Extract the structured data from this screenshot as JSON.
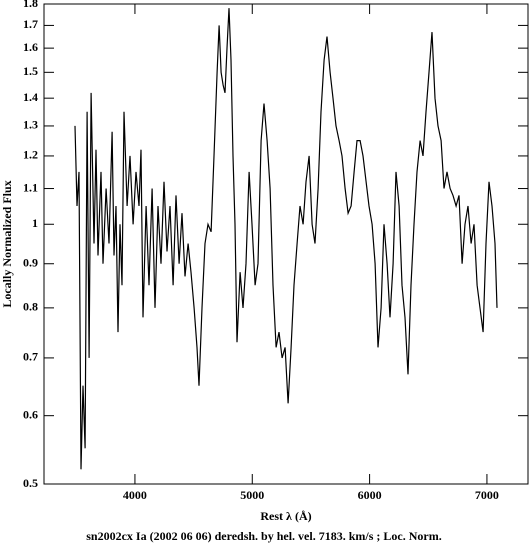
{
  "chart_data": {
    "type": "line",
    "caption": "sn2002cx Ia (2002 06 06) deredsh. by hel. vel.  7183. km/s ;  Loc. Norm.",
    "xlabel": "Rest λ (Å)",
    "ylabel": "Locally Normalized Flux",
    "color": "#000000",
    "yscale": "log",
    "xlim": [
      3225,
      7350
    ],
    "ylim": [
      0.5,
      1.8
    ],
    "xticks": [
      4000,
      5000,
      6000,
      7000
    ],
    "yticks": [
      0.5,
      0.6,
      0.7,
      0.8,
      0.9,
      1,
      1.1,
      1.2,
      1.3,
      1.4,
      1.5,
      1.6,
      1.7,
      1.8
    ],
    "x": [
      3489,
      3506,
      3523,
      3540,
      3557,
      3575,
      3592,
      3609,
      3626,
      3651,
      3668,
      3685,
      3711,
      3728,
      3754,
      3779,
      3805,
      3822,
      3839,
      3856,
      3873,
      3890,
      3907,
      3933,
      3958,
      3984,
      4009,
      4035,
      4052,
      4069,
      4095,
      4120,
      4146,
      4171,
      4197,
      4222,
      4248,
      4273,
      4299,
      4325,
      4350,
      4376,
      4401,
      4427,
      4453,
      4478,
      4504,
      4529,
      4546,
      4572,
      4597,
      4623,
      4649,
      4674,
      4700,
      4717,
      4734,
      4751,
      4768,
      4785,
      4802,
      4819,
      4836,
      4853,
      4870,
      4896,
      4921,
      4947,
      4973,
      4998,
      5024,
      5049,
      5075,
      5100,
      5126,
      5152,
      5177,
      5203,
      5228,
      5254,
      5280,
      5305,
      5331,
      5356,
      5382,
      5407,
      5433,
      5458,
      5484,
      5510,
      5535,
      5561,
      5586,
      5612,
      5637,
      5663,
      5688,
      5714,
      5740,
      5765,
      5791,
      5817,
      5842,
      5868,
      5893,
      5919,
      5944,
      5970,
      5995,
      6021,
      6047,
      6072,
      6098,
      6123,
      6149,
      6174,
      6200,
      6225,
      6251,
      6276,
      6302,
      6327,
      6353,
      6378,
      6404,
      6430,
      6455,
      6481,
      6506,
      6532,
      6557,
      6583,
      6609,
      6634,
      6660,
      6686,
      6711,
      6737,
      6762,
      6788,
      6813,
      6839,
      6865,
      6890,
      6916,
      6941,
      6967,
      6992,
      7018,
      7043,
      7069,
      7086
    ],
    "values": [
      1.3,
      1.05,
      1.15,
      0.52,
      0.65,
      0.55,
      1.35,
      0.7,
      1.42,
      0.95,
      1.22,
      0.92,
      1.15,
      0.9,
      1.1,
      0.95,
      1.28,
      0.92,
      1.05,
      0.75,
      1.0,
      0.85,
      1.35,
      1.05,
      1.2,
      1.0,
      1.15,
      1.05,
      1.22,
      0.78,
      1.05,
      0.85,
      1.1,
      0.8,
      1.05,
      0.9,
      1.12,
      0.93,
      1.05,
      0.85,
      1.08,
      0.9,
      1.03,
      0.87,
      0.95,
      0.88,
      0.8,
      0.72,
      0.65,
      0.8,
      0.95,
      1.0,
      0.98,
      1.2,
      1.5,
      1.7,
      1.5,
      1.45,
      1.42,
      1.6,
      1.78,
      1.55,
      1.2,
      1.0,
      0.73,
      0.88,
      0.8,
      0.9,
      1.15,
      1.0,
      0.85,
      0.9,
      1.25,
      1.38,
      1.25,
      1.1,
      0.85,
      0.72,
      0.75,
      0.7,
      0.72,
      0.62,
      0.72,
      0.85,
      0.95,
      1.05,
      1.0,
      1.12,
      1.2,
      1.0,
      0.95,
      1.1,
      1.35,
      1.55,
      1.65,
      1.5,
      1.4,
      1.3,
      1.25,
      1.2,
      1.1,
      1.03,
      1.05,
      1.15,
      1.25,
      1.25,
      1.2,
      1.12,
      1.05,
      1.0,
      0.9,
      0.72,
      0.8,
      1.0,
      0.9,
      0.78,
      0.9,
      1.15,
      1.05,
      0.85,
      0.78,
      0.67,
      0.85,
      1.0,
      1.15,
      1.25,
      1.2,
      1.35,
      1.5,
      1.67,
      1.4,
      1.3,
      1.25,
      1.1,
      1.15,
      1.1,
      1.08,
      1.05,
      1.08,
      0.9,
      1.0,
      1.05,
      0.95,
      1.0,
      0.85,
      0.8,
      0.75,
      0.95,
      1.12,
      1.05,
      0.95,
      0.8
    ]
  }
}
